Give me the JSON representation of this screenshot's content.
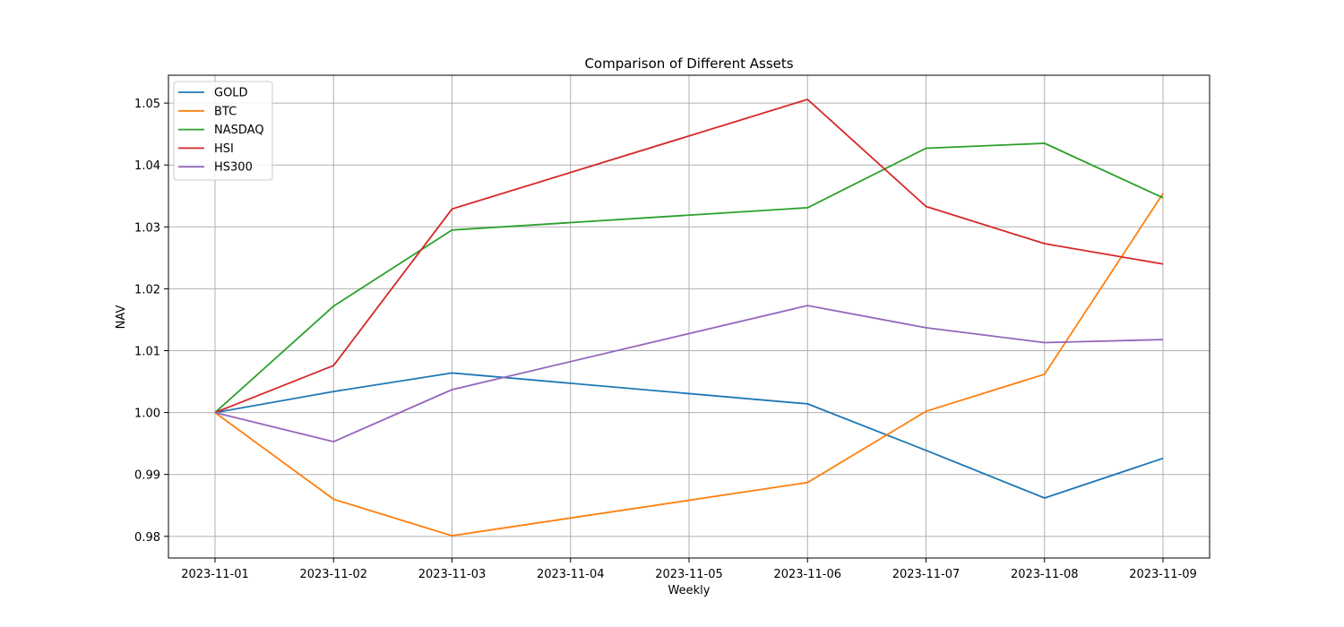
{
  "chart_data": {
    "type": "line",
    "title": "Comparison of Different Assets",
    "xlabel": "Weekly",
    "ylabel": "NAV",
    "x": [
      "2023-11-01",
      "2023-11-02",
      "2023-11-03",
      "2023-11-04",
      "2023-11-05",
      "2023-11-06",
      "2023-11-07",
      "2023-11-08",
      "2023-11-09"
    ],
    "x_ticks": [
      "2023-11-01",
      "2023-11-02",
      "2023-11-03",
      "2023-11-04",
      "2023-11-05",
      "2023-11-06",
      "2023-11-07",
      "2023-11-08",
      "2023-11-09"
    ],
    "ylim": [
      0.9765,
      1.0545
    ],
    "y_ticks": [
      0.98,
      0.99,
      1.0,
      1.01,
      1.02,
      1.03,
      1.04,
      1.05
    ],
    "y_tick_labels": [
      "0.98",
      "0.99",
      "1.00",
      "1.01",
      "1.02",
      "1.03",
      "1.04",
      "1.05"
    ],
    "grid": true,
    "legend_position": "top-left",
    "series": [
      {
        "name": "GOLD",
        "color": "#1f77b4",
        "points": [
          [
            "2023-11-01",
            1.0
          ],
          [
            "2023-11-02",
            1.0034
          ],
          [
            "2023-11-03",
            1.0064
          ],
          [
            "2023-11-06",
            1.0014
          ],
          [
            "2023-11-07",
            0.9939
          ],
          [
            "2023-11-08",
            0.9862
          ],
          [
            "2023-11-09",
            0.9926
          ]
        ]
      },
      {
        "name": "BTC",
        "color": "#ff7f0e",
        "points": [
          [
            "2023-11-01",
            1.0
          ],
          [
            "2023-11-02",
            0.986
          ],
          [
            "2023-11-03",
            0.9801
          ],
          [
            "2023-11-06",
            0.9887
          ],
          [
            "2023-11-07",
            1.0002
          ],
          [
            "2023-11-08",
            1.0062
          ],
          [
            "2023-11-09",
            1.0354
          ]
        ]
      },
      {
        "name": "NASDAQ",
        "color": "#2ca02c",
        "points": [
          [
            "2023-11-01",
            1.0
          ],
          [
            "2023-11-02",
            1.0172
          ],
          [
            "2023-11-03",
            1.0295
          ],
          [
            "2023-11-06",
            1.0331
          ],
          [
            "2023-11-07",
            1.0427
          ],
          [
            "2023-11-08",
            1.0435
          ],
          [
            "2023-11-09",
            1.0347
          ]
        ]
      },
      {
        "name": "HSI",
        "color": "#d62728",
        "points": [
          [
            "2023-11-01",
            1.0
          ],
          [
            "2023-11-02",
            1.0076
          ],
          [
            "2023-11-03",
            1.0329
          ],
          [
            "2023-11-06",
            1.0506
          ],
          [
            "2023-11-07",
            1.0333
          ],
          [
            "2023-11-08",
            1.0273
          ],
          [
            "2023-11-09",
            1.024
          ]
        ]
      },
      {
        "name": "HS300",
        "color": "#9467bd",
        "points": [
          [
            "2023-11-01",
            1.0
          ],
          [
            "2023-11-02",
            0.9953
          ],
          [
            "2023-11-03",
            1.0037
          ],
          [
            "2023-11-06",
            1.0173
          ],
          [
            "2023-11-07",
            1.0137
          ],
          [
            "2023-11-08",
            1.0113
          ],
          [
            "2023-11-09",
            1.0118
          ]
        ]
      }
    ]
  }
}
